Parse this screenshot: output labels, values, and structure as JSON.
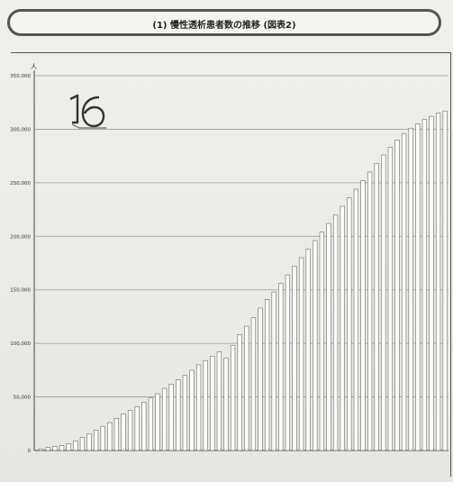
{
  "title": "(1) 慢性透析患者数の推移 (図表2)",
  "chart_data": {
    "type": "bar",
    "y_unit": "人",
    "ylim": [
      0,
      350000
    ],
    "yticks": [
      0,
      50000,
      100000,
      150000,
      200000,
      250000,
      300000,
      350000
    ],
    "ytick_labels": [
      "0",
      "50,000",
      "100,000",
      "150,000",
      "200,000",
      "250,000",
      "300,000",
      "350,000"
    ],
    "grid": true,
    "values": [
      1500,
      2800,
      3800,
      4800,
      6500,
      9000,
      12000,
      15500,
      19000,
      22500,
      26000,
      30000,
      34000,
      37500,
      41000,
      45000,
      49000,
      53000,
      58000,
      62000,
      66000,
      70000,
      75000,
      80000,
      84000,
      88000,
      92000,
      86000,
      98000,
      108000,
      116000,
      124000,
      133000,
      141000,
      148000,
      156000,
      164000,
      172000,
      180000,
      188000,
      196000,
      204000,
      212000,
      220000,
      228000,
      236000,
      244000,
      252000,
      260000,
      268000,
      276000,
      283000,
      290000,
      296000,
      301000,
      305000,
      309000,
      312000,
      315000,
      317000
    ]
  }
}
